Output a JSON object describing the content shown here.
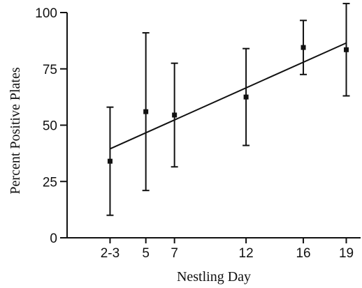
{
  "chart_data": {
    "type": "scatter",
    "title": "",
    "xlabel": "Nestling Day",
    "ylabel": "Percent Positive Plates",
    "x_ticks": [
      {
        "value": 2.5,
        "label": "2-3"
      },
      {
        "value": 5,
        "label": "5"
      },
      {
        "value": 7,
        "label": "7"
      },
      {
        "value": 12,
        "label": "12"
      },
      {
        "value": 16,
        "label": "16"
      },
      {
        "value": 19,
        "label": "19"
      }
    ],
    "y_ticks": [
      0,
      25,
      50,
      75,
      100
    ],
    "xlim": [
      -0.5,
      20
    ],
    "ylim": [
      0,
      100
    ],
    "points": [
      {
        "x": 2.5,
        "y": 34,
        "low": 10,
        "high": 58
      },
      {
        "x": 5,
        "y": 56,
        "low": 21,
        "high": 91
      },
      {
        "x": 7,
        "y": 54.5,
        "low": 31.5,
        "high": 77.5
      },
      {
        "x": 12,
        "y": 62.5,
        "low": 41,
        "high": 84
      },
      {
        "x": 16,
        "y": 84.5,
        "low": 72.5,
        "high": 96.5
      },
      {
        "x": 19,
        "y": 83.5,
        "low": 63,
        "high": 104
      }
    ],
    "fit_line": [
      {
        "x": 2.5,
        "y": 39.5
      },
      {
        "x": 19,
        "y": 86.5
      }
    ],
    "grid": false,
    "legend": "none"
  }
}
